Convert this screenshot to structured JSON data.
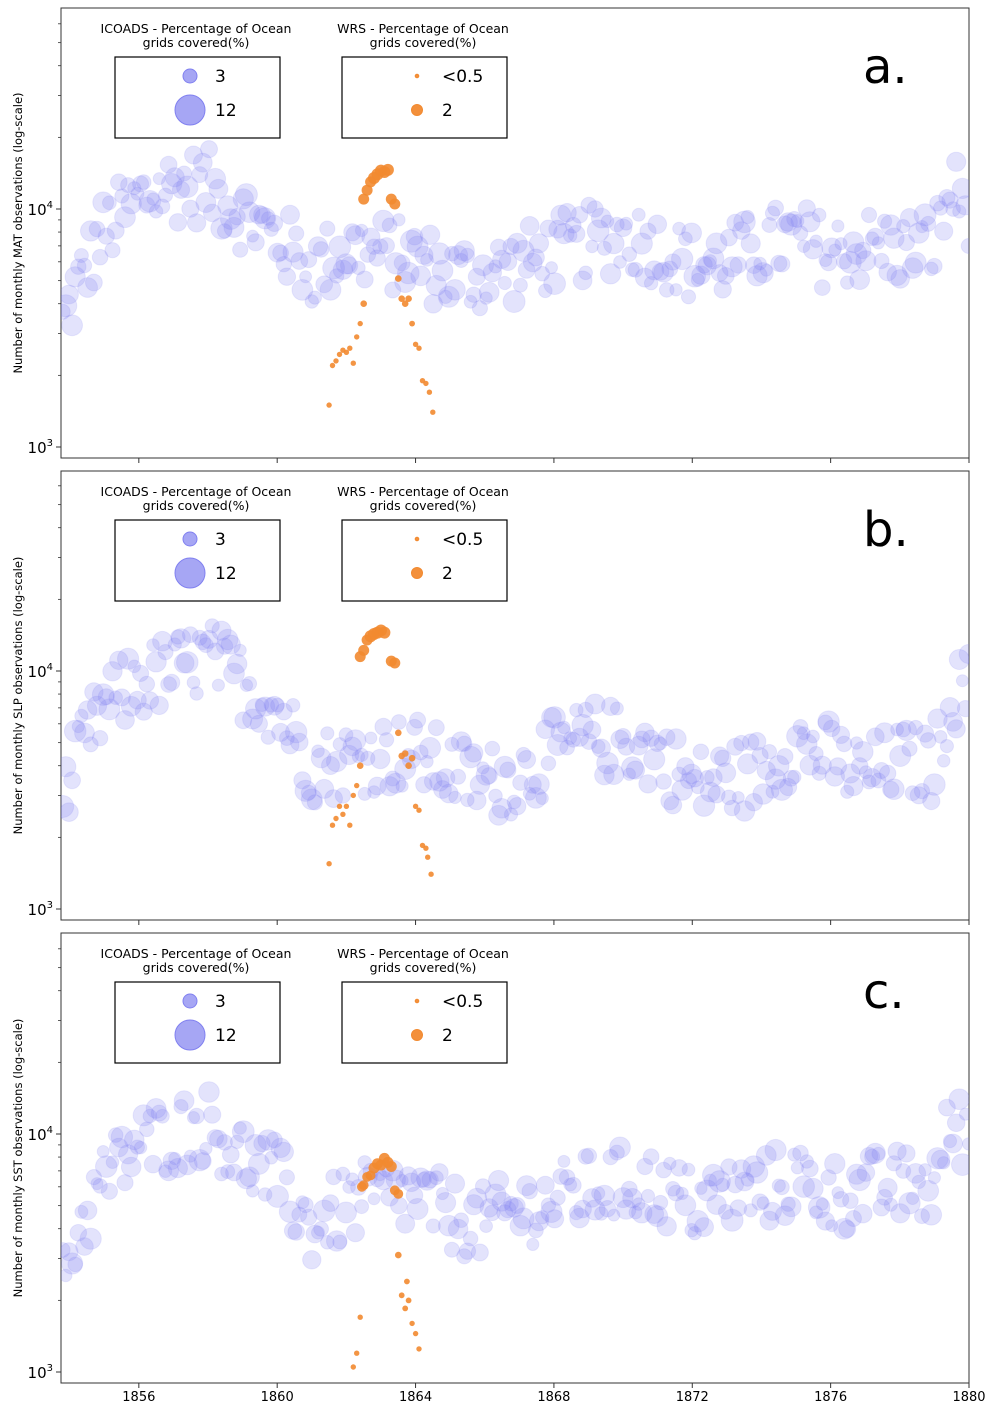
{
  "chart_data": [
    {
      "type": "scatter",
      "panel_label": "a.",
      "ylabel": "Number of monthly MAT observations (log-scale)",
      "xlim": [
        1853.75,
        1880
      ],
      "ylim": [
        1000,
        100000
      ],
      "yscale": "log",
      "y_tick_labels": [
        {
          "value": 1000,
          "label": "10^3"
        },
        {
          "value": 10000,
          "label": "10^4"
        }
      ],
      "legends": [
        {
          "title": [
            "ICOADS - Percentage of Ocean",
            "grids covered(%)"
          ],
          "entries": [
            {
              "label": "3",
              "size_pct": 3
            },
            {
              "label": "12",
              "size_pct": 12
            }
          ]
        },
        {
          "title": [
            "WRS - Percentage of Ocean",
            "grids covered(%)"
          ],
          "entries": [
            {
              "label": "<0.5",
              "size_pct": 0.5
            },
            {
              "label": "2",
              "size_pct": 2
            }
          ]
        }
      ],
      "series": [
        {
          "name": "ICOADS",
          "color": "#8080f0",
          "trend": [
            [
              1853.8,
              3300
            ],
            [
              1854.3,
              5000
            ],
            [
              1855,
              8000
            ],
            [
              1856,
              11000
            ],
            [
              1857,
              12500
            ],
            [
              1858,
              12500
            ],
            [
              1859,
              9500
            ],
            [
              1860,
              7500
            ],
            [
              1861,
              5500
            ],
            [
              1862,
              6800
            ],
            [
              1863,
              6500
            ],
            [
              1864,
              6200
            ],
            [
              1865,
              5200
            ],
            [
              1866,
              5300
            ],
            [
              1867,
              5800
            ],
            [
              1868,
              6500
            ],
            [
              1869,
              7200
            ],
            [
              1870,
              7800
            ],
            [
              1871,
              6800
            ],
            [
              1872,
              5800
            ],
            [
              1873,
              6000
            ],
            [
              1874,
              7000
            ],
            [
              1875,
              7500
            ],
            [
              1876,
              6500
            ],
            [
              1877,
              7000
            ],
            [
              1878,
              6800
            ],
            [
              1879,
              7200
            ],
            [
              1879.5,
              12000
            ],
            [
              1880,
              10000
            ]
          ],
          "spread": 0.16
        },
        {
          "name": "WRS",
          "color": "#f28a30",
          "points": [
            [
              1861.5,
              1500
            ],
            [
              1861.6,
              2200
            ],
            [
              1861.7,
              2300
            ],
            [
              1861.8,
              2450
            ],
            [
              1861.9,
              2550
            ],
            [
              1862.0,
              2500
            ],
            [
              1862.1,
              2600
            ],
            [
              1862.2,
              2250
            ],
            [
              1862.3,
              2900
            ],
            [
              1862.4,
              3300
            ],
            [
              1862.5,
              4000
            ],
            [
              1862.5,
              11000
            ],
            [
              1862.6,
              12000
            ],
            [
              1862.7,
              13000
            ],
            [
              1862.8,
              13500
            ],
            [
              1862.9,
              14000
            ],
            [
              1863.0,
              14500
            ],
            [
              1863.1,
              14300
            ],
            [
              1863.2,
              14600
            ],
            [
              1863.3,
              11000
            ],
            [
              1863.4,
              10500
            ],
            [
              1863.5,
              5100
            ],
            [
              1863.6,
              4200
            ],
            [
              1863.7,
              4000
            ],
            [
              1863.8,
              4200
            ],
            [
              1863.9,
              3300
            ],
            [
              1864.0,
              2700
            ],
            [
              1864.1,
              2600
            ],
            [
              1864.2,
              1900
            ],
            [
              1864.3,
              1850
            ],
            [
              1864.4,
              1700
            ],
            [
              1864.5,
              1400
            ]
          ],
          "sizes": [
            1,
            1,
            1,
            1,
            1,
            1,
            1,
            1,
            1,
            1,
            1.5,
            3.5,
            3.5,
            3.5,
            4,
            4,
            4,
            4,
            4,
            3.5,
            3.5,
            1.5,
            1.5,
            1.5,
            1.5,
            1.2,
            1,
            1,
            1,
            1,
            1,
            1
          ]
        }
      ]
    },
    {
      "type": "scatter",
      "panel_label": "b.",
      "ylabel": "Number of monthly SLP observations (log-scale)",
      "xlim": [
        1853.75,
        1880
      ],
      "ylim": [
        1000,
        100000
      ],
      "yscale": "log",
      "y_tick_labels": [
        {
          "value": 1000,
          "label": "10^3"
        },
        {
          "value": 10000,
          "label": "10^4"
        }
      ],
      "legends": [
        {
          "title": [
            "ICOADS - Percentage of Ocean",
            "grids covered(%)"
          ],
          "entries": [
            {
              "label": "3",
              "size_pct": 3
            },
            {
              "label": "12",
              "size_pct": 12
            }
          ]
        },
        {
          "title": [
            "WRS - Percentage of Ocean",
            "grids covered(%)"
          ],
          "entries": [
            {
              "label": "<0.5",
              "size_pct": 0.5
            },
            {
              "label": "2",
              "size_pct": 2
            }
          ]
        }
      ],
      "series": [
        {
          "name": "ICOADS",
          "color": "#8080f0",
          "trend": [
            [
              1853.8,
              2700
            ],
            [
              1854.3,
              4500
            ],
            [
              1855,
              7000
            ],
            [
              1856,
              9000
            ],
            [
              1857,
              10000
            ],
            [
              1858,
              11500
            ],
            [
              1859,
              9000
            ],
            [
              1860,
              7000
            ],
            [
              1861,
              4000
            ],
            [
              1862,
              4200
            ],
            [
              1863,
              4500
            ],
            [
              1864,
              4500
            ],
            [
              1865,
              3800
            ],
            [
              1866,
              3400
            ],
            [
              1867,
              3600
            ],
            [
              1868,
              4500
            ],
            [
              1869,
              5200
            ],
            [
              1870,
              5000
            ],
            [
              1871,
              4500
            ],
            [
              1872,
              3300
            ],
            [
              1873,
              3500
            ],
            [
              1874,
              3800
            ],
            [
              1875,
              5000
            ],
            [
              1876,
              4300
            ],
            [
              1877,
              3600
            ],
            [
              1878,
              4200
            ],
            [
              1879,
              4000
            ],
            [
              1879.5,
              8000
            ],
            [
              1880,
              8500
            ]
          ],
          "spread": 0.16
        },
        {
          "name": "WRS",
          "color": "#f28a30",
          "points": [
            [
              1861.5,
              1550
            ],
            [
              1861.6,
              2250
            ],
            [
              1861.7,
              2400
            ],
            [
              1861.8,
              2700
            ],
            [
              1861.9,
              2500
            ],
            [
              1862.0,
              2700
            ],
            [
              1862.1,
              2250
            ],
            [
              1862.2,
              3000
            ],
            [
              1862.3,
              3300
            ],
            [
              1862.4,
              4000
            ],
            [
              1862.4,
              11500
            ],
            [
              1862.5,
              12200
            ],
            [
              1862.6,
              13500
            ],
            [
              1862.7,
              14000
            ],
            [
              1862.8,
              14300
            ],
            [
              1862.9,
              14500
            ],
            [
              1863.0,
              14800
            ],
            [
              1863.1,
              14500
            ],
            [
              1863.3,
              11000
            ],
            [
              1863.4,
              10800
            ],
            [
              1863.5,
              5500
            ],
            [
              1863.6,
              4400
            ],
            [
              1863.7,
              4500
            ],
            [
              1863.8,
              4000
            ],
            [
              1863.9,
              4300
            ],
            [
              1864.0,
              2700
            ],
            [
              1864.1,
              2600
            ],
            [
              1864.2,
              1850
            ],
            [
              1864.3,
              1800
            ],
            [
              1864.35,
              1650
            ],
            [
              1864.45,
              1400
            ]
          ],
          "sizes": [
            1,
            1,
            1,
            1,
            1,
            1,
            1,
            1,
            1,
            1.5,
            3.5,
            3.5,
            3.5,
            4,
            4,
            4,
            4,
            4,
            3.5,
            3.5,
            1.5,
            1.5,
            1.5,
            1.5,
            1.5,
            1,
            1,
            1,
            1,
            1,
            1
          ]
        }
      ]
    },
    {
      "type": "scatter",
      "panel_label": "c.",
      "ylabel": "Number of monthly SST observations (log-scale)",
      "xlim": [
        1853.75,
        1880
      ],
      "ylim": [
        1000,
        100000
      ],
      "yscale": "log",
      "xticks": [
        1856,
        1860,
        1864,
        1868,
        1872,
        1876,
        1880
      ],
      "y_tick_labels": [
        {
          "value": 1000,
          "label": "10^3"
        },
        {
          "value": 10000,
          "label": "10^4"
        }
      ],
      "legends": [
        {
          "title": [
            "ICOADS - Percentage of Ocean",
            "grids covered(%)"
          ],
          "entries": [
            {
              "label": "3",
              "size_pct": 3
            },
            {
              "label": "12",
              "size_pct": 12
            }
          ]
        },
        {
          "title": [
            "WRS - Percentage of Ocean",
            "grids covered(%)"
          ],
          "entries": [
            {
              "label": "<0.5",
              "size_pct": 0.5
            },
            {
              "label": "2",
              "size_pct": 2
            }
          ]
        }
      ],
      "series": [
        {
          "name": "ICOADS",
          "color": "#8080f0",
          "trend": [
            [
              1853.8,
              2700
            ],
            [
              1854.3,
              4000
            ],
            [
              1855,
              6500
            ],
            [
              1856,
              9000
            ],
            [
              1857,
              10000
            ],
            [
              1858,
              11000
            ],
            [
              1859,
              8000
            ],
            [
              1860,
              6500
            ],
            [
              1861,
              4000
            ],
            [
              1862,
              5000
            ],
            [
              1863,
              5500
            ],
            [
              1864,
              5500
            ],
            [
              1865,
              4500
            ],
            [
              1866,
              4200
            ],
            [
              1867,
              4800
            ],
            [
              1868,
              5200
            ],
            [
              1869,
              5800
            ],
            [
              1870,
              6200
            ],
            [
              1871,
              6000
            ],
            [
              1872,
              5000
            ],
            [
              1873,
              5500
            ],
            [
              1874,
              5800
            ],
            [
              1875,
              6500
            ],
            [
              1876,
              5500
            ],
            [
              1877,
              5800
            ],
            [
              1878,
              6000
            ],
            [
              1879,
              6000
            ],
            [
              1879.5,
              11000
            ],
            [
              1880,
              10000
            ]
          ],
          "spread": 0.16
        },
        {
          "name": "WRS",
          "color": "#f28a30",
          "points": [
            [
              1862.2,
              1050
            ],
            [
              1862.3,
              1200
            ],
            [
              1862.4,
              1700
            ],
            [
              1862.45,
              6000
            ],
            [
              1862.5,
              6100
            ],
            [
              1862.6,
              6600
            ],
            [
              1862.7,
              6700
            ],
            [
              1862.8,
              7200
            ],
            [
              1862.9,
              7500
            ],
            [
              1863.0,
              7400
            ],
            [
              1863.1,
              7900
            ],
            [
              1863.2,
              7600
            ],
            [
              1863.3,
              7300
            ],
            [
              1863.4,
              5800
            ],
            [
              1863.5,
              5600
            ],
            [
              1863.5,
              3100
            ],
            [
              1863.6,
              2100
            ],
            [
              1863.7,
              1850
            ],
            [
              1863.75,
              2400
            ],
            [
              1863.8,
              2000
            ],
            [
              1863.9,
              1600
            ],
            [
              1864.0,
              1450
            ],
            [
              1864.1,
              1250
            ]
          ],
          "sizes": [
            1,
            1,
            1,
            3,
            3,
            3,
            3,
            3.5,
            3.5,
            3.5,
            3.5,
            3.5,
            3.5,
            3,
            3,
            1.5,
            1.2,
            1.2,
            1.2,
            1.2,
            1,
            1,
            1
          ]
        }
      ]
    }
  ]
}
